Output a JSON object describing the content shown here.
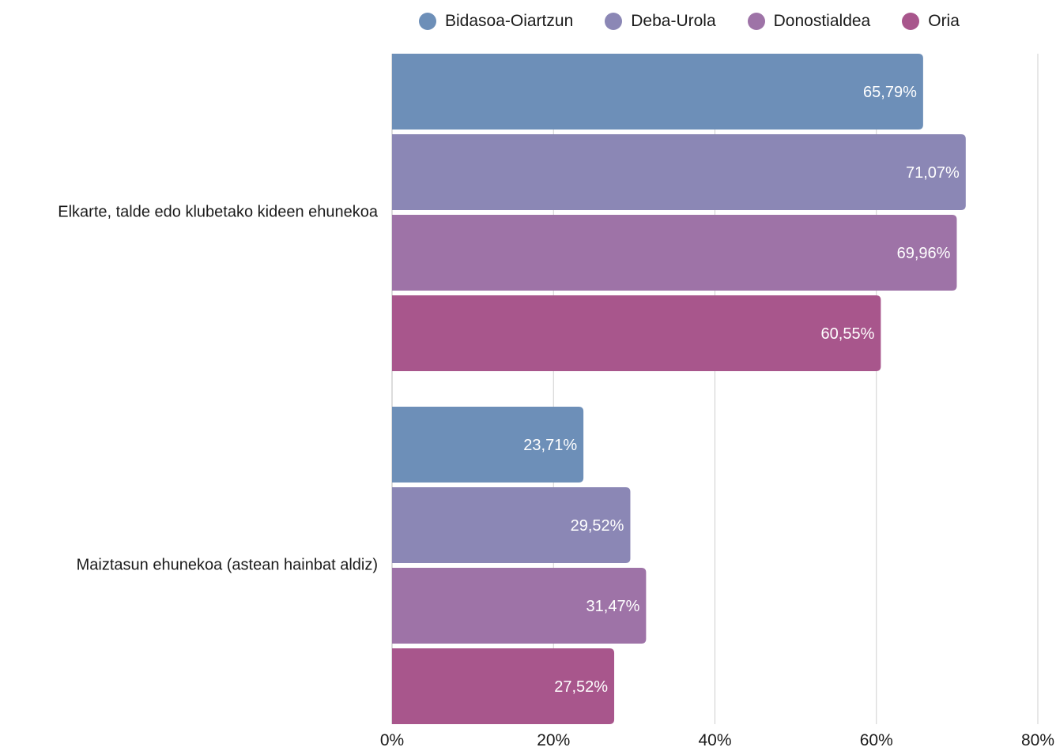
{
  "chart_data": {
    "type": "bar",
    "orientation": "horizontal",
    "categories": [
      "Elkarte, talde edo klubetako kideen ehunekoa",
      "Maiztasun ehunekoa (astean hainbat aldiz)"
    ],
    "series": [
      {
        "name": "Bidasoa-Oiartzun",
        "color": "#6d8fb8",
        "values": [
          65.79,
          23.71
        ],
        "labels": [
          "65,79%",
          "23,71%"
        ]
      },
      {
        "name": "Deba-Urola",
        "color": "#8b87b5",
        "values": [
          71.07,
          29.52
        ],
        "labels": [
          "71,07%",
          "29,52%"
        ]
      },
      {
        "name": "Donostialdea",
        "color": "#9e73a7",
        "values": [
          69.96,
          31.47
        ],
        "labels": [
          "69,96%",
          "31,47%"
        ]
      },
      {
        "name": "Oria",
        "color": "#a8568c",
        "values": [
          60.55,
          27.52
        ],
        "labels": [
          "60,55%",
          "27,52%"
        ]
      }
    ],
    "xlim": [
      0,
      80
    ],
    "xticks": [
      0,
      20,
      40,
      60,
      80
    ],
    "xtick_labels": [
      "0%",
      "20%",
      "40%",
      "60%",
      "80%"
    ],
    "grid": true,
    "legend_position": "top"
  }
}
